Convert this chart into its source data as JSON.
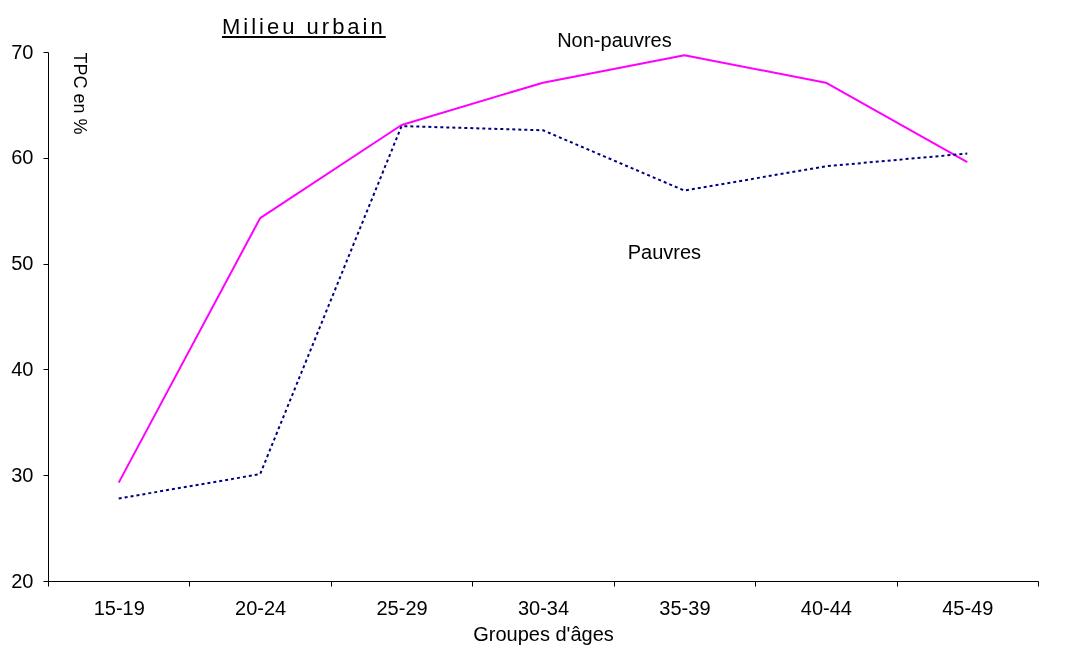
{
  "chart_data": {
    "type": "line",
    "title": "Milieu urbain",
    "xlabel": "Groupes d'âges",
    "ylabel": "TPC en %",
    "categories": [
      "15-19",
      "20-24",
      "25-29",
      "30-34",
      "35-39",
      "40-44",
      "45-49"
    ],
    "series": [
      {
        "name": "Non-pauvres",
        "color": "#ff00ff",
        "line_style": "solid",
        "values": [
          29.3,
          54.3,
          63.1,
          67.1,
          69.7,
          67.1,
          59.6
        ]
      },
      {
        "name": "Pauvres",
        "color": "#000080",
        "line_style": "dotted",
        "values": [
          27.8,
          30.1,
          63.0,
          62.6,
          56.9,
          59.2,
          60.4
        ]
      }
    ],
    "ylim": [
      20,
      70
    ],
    "yticks": [
      20,
      30,
      40,
      50,
      60,
      70
    ],
    "marker": "none"
  }
}
